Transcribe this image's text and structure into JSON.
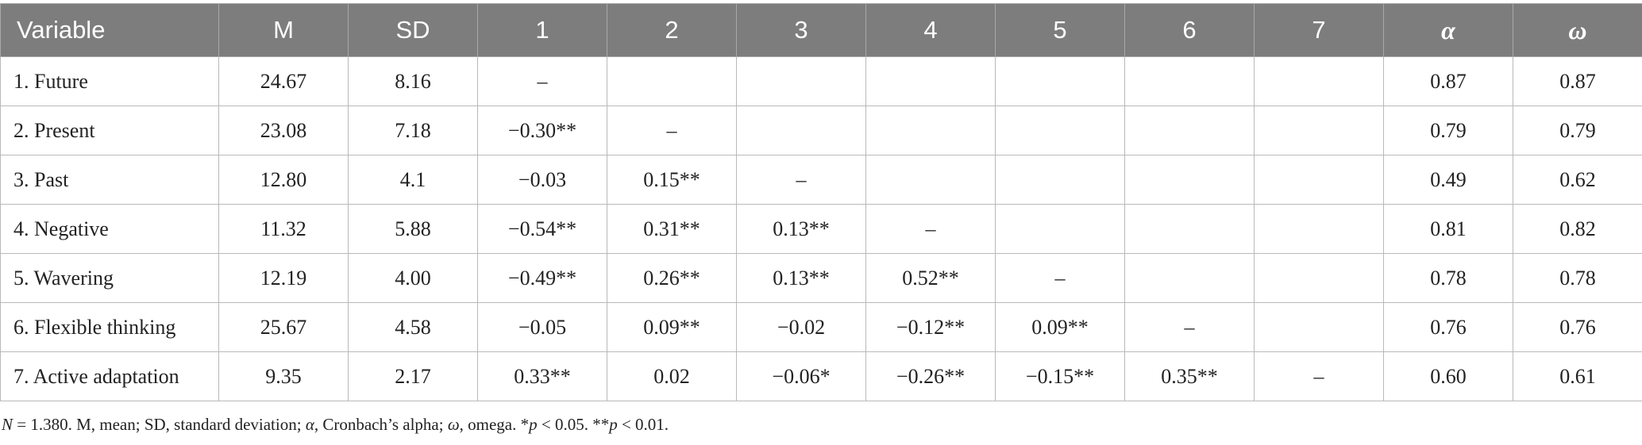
{
  "table": {
    "headers": [
      "Variable",
      "M",
      "SD",
      "1",
      "2",
      "3",
      "4",
      "5",
      "6",
      "7",
      "α",
      "ω"
    ],
    "rows": [
      [
        "1. Future",
        "24.67",
        "8.16",
        "–",
        "",
        "",
        "",
        "",
        "",
        "",
        "0.87",
        "0.87"
      ],
      [
        "2. Present",
        "23.08",
        "7.18",
        "−0.30**",
        "–",
        "",
        "",
        "",
        "",
        "",
        "0.79",
        "0.79"
      ],
      [
        "3. Past",
        "12.80",
        "4.1",
        "−0.03",
        "0.15**",
        "–",
        "",
        "",
        "",
        "",
        "0.49",
        "0.62"
      ],
      [
        "4. Negative",
        "11.32",
        "5.88",
        "−0.54**",
        "0.31**",
        "0.13**",
        "–",
        "",
        "",
        "",
        "0.81",
        "0.82"
      ],
      [
        "5. Wavering",
        "12.19",
        "4.00",
        "−0.49**",
        "0.26**",
        "0.13**",
        "0.52**",
        "–",
        "",
        "",
        "0.78",
        "0.78"
      ],
      [
        "6. Flexible thinking",
        "25.67",
        "4.58",
        "−0.05",
        "0.09**",
        "−0.02",
        "−0.12**",
        "0.09**",
        "–",
        "",
        "0.76",
        "0.76"
      ],
      [
        "7. Active adaptation",
        "9.35",
        "2.17",
        "0.33**",
        "0.02",
        "−0.06*",
        "−0.26**",
        "−0.15**",
        "0.35**",
        "–",
        "0.60",
        "0.61"
      ]
    ]
  },
  "note": {
    "n_symbol": "N",
    "part1": " = 1.380. M, mean; SD, standard deviation; ",
    "alpha": "α",
    "part2": ", Cronbach’s alpha; ",
    "omega": "ω",
    "part3": ", omega. *",
    "p1": "p",
    "part4": " < 0.05. **",
    "p2": "p",
    "part5": " < 0.01."
  }
}
